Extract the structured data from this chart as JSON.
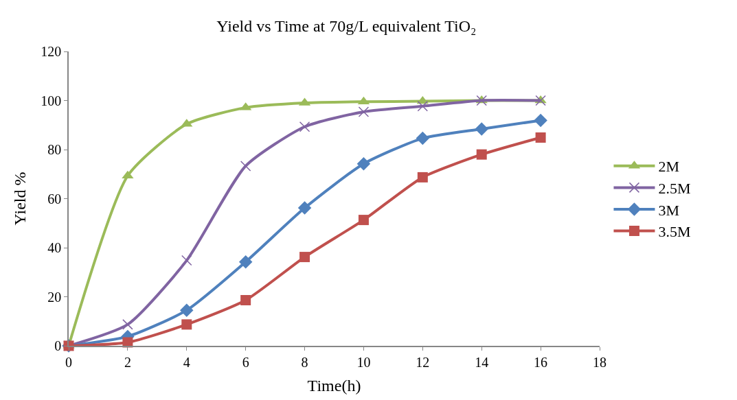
{
  "chart_data": {
    "type": "line",
    "title": "Yield vs Time at 70g/L equivalent TiO₂",
    "xlabel": "Time(h)",
    "ylabel": "Yield %",
    "x": [
      0,
      2,
      4,
      6,
      8,
      10,
      12,
      14,
      16
    ],
    "series": [
      {
        "name": "2M",
        "color": "#9bbb59",
        "marker": "triangle",
        "values": [
          0,
          69.3,
          90.4,
          97.1,
          99,
          99.5,
          99.7,
          100,
          100
        ]
      },
      {
        "name": "2.5M",
        "color": "#8064a2",
        "marker": "cross",
        "values": [
          0,
          8.7,
          34.8,
          73.3,
          89.3,
          95.4,
          97.7,
          100,
          100
        ]
      },
      {
        "name": "3M",
        "color": "#4f81bd",
        "marker": "diamond",
        "values": [
          0,
          3.8,
          14.5,
          34.2,
          56.2,
          74.2,
          84.6,
          88.4,
          91.9
        ]
      },
      {
        "name": "3.5M",
        "color": "#c0504d",
        "marker": "square",
        "values": [
          0,
          1.4,
          8.7,
          18.6,
          36.2,
          51.3,
          68.7,
          78,
          84.9
        ]
      }
    ],
    "xlim": [
      0,
      18
    ],
    "xticks": [
      0,
      2,
      4,
      6,
      8,
      10,
      12,
      14,
      16,
      18
    ],
    "ylim": [
      0,
      120
    ],
    "yticks": [
      0,
      20,
      40,
      60,
      80,
      100,
      120
    ],
    "legend": "right",
    "line_style": "solid"
  }
}
